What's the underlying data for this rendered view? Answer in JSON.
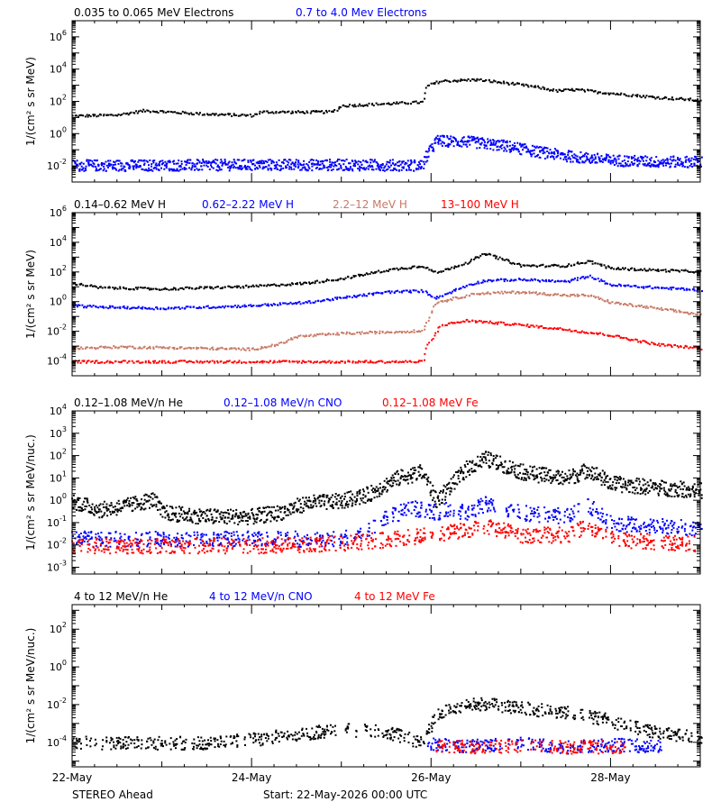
{
  "chart_data": [
    {
      "type": "scatter",
      "ylabel": "1/(cm² s sr MeV)",
      "yscale": "log",
      "ylim": [
        0.001,
        10000000
      ],
      "ytick_exponents": [
        -2,
        0,
        2,
        4,
        6
      ],
      "series": [
        {
          "name": "0.035 to 0.065 MeV Electrons",
          "color": "#000000",
          "x": [
            0,
            0.3,
            0.5,
            0.8,
            1.5,
            2.0,
            2.1,
            2.5,
            2.9,
            3.0,
            3.5,
            3.9,
            3.95,
            4.1,
            4.5,
            4.9,
            5.2,
            5.4,
            5.6,
            5.9,
            6.5,
            7.0
          ],
          "y": [
            14,
            15,
            16,
            30,
            18,
            15,
            25,
            24,
            25,
            60,
            80,
            100,
            1000,
            2000,
            2500,
            1400,
            800,
            500,
            600,
            400,
            200,
            130
          ]
        },
        {
          "name": "0.7 to 4.0 Mev Electrons",
          "color": "#0000ff",
          "x": [
            0,
            1,
            2,
            3,
            3.9,
            3.95,
            4.05,
            4.4,
            4.8,
            5.2,
            5.6,
            6.0,
            6.5,
            7.0
          ],
          "y": [
            0.012,
            0.012,
            0.013,
            0.013,
            0.012,
            0.05,
            0.4,
            0.35,
            0.2,
            0.08,
            0.04,
            0.025,
            0.02,
            0.02
          ]
        }
      ]
    },
    {
      "type": "scatter",
      "ylabel": "1/(cm² s sr MeV)",
      "yscale": "log",
      "ylim": [
        1e-05,
        1000000
      ],
      "ytick_exponents": [
        -4,
        -2,
        0,
        2,
        4,
        6
      ],
      "series": [
        {
          "name": "0.14–0.62 MeV H",
          "color": "#000000",
          "x": [
            0,
            0.3,
            1,
            2,
            2.6,
            3,
            3.5,
            3.9,
            4.05,
            4.4,
            4.6,
            5.0,
            5.5,
            5.75,
            6.0,
            6.5,
            7.0
          ],
          "y": [
            20,
            10,
            8,
            12,
            20,
            40,
            150,
            300,
            100,
            500,
            2000,
            300,
            300,
            600,
            200,
            150,
            120
          ]
        },
        {
          "name": "0.62–2.22 MeV H",
          "color": "#0000ff",
          "x": [
            0,
            0.3,
            1,
            2,
            2.6,
            3,
            3.5,
            3.9,
            4.05,
            4.4,
            4.6,
            5.0,
            5.5,
            5.75,
            6.0,
            6.5,
            7.0
          ],
          "y": [
            0.6,
            0.5,
            0.4,
            0.6,
            1,
            2,
            5,
            6,
            2,
            15,
            30,
            35,
            25,
            60,
            15,
            10,
            7
          ]
        },
        {
          "name": "2.2–12 MeV H",
          "color": "#c87a66",
          "x": [
            0,
            0.5,
            1,
            1.5,
            2,
            2.3,
            2.5,
            3,
            3.5,
            3.9,
            4.05,
            4.5,
            5.0,
            5.5,
            5.75,
            6.0,
            6.5,
            7.0
          ],
          "y": [
            0.0008,
            0.001,
            0.0009,
            0.0008,
            0.0007,
            0.0015,
            0.005,
            0.008,
            0.01,
            0.012,
            1,
            4,
            5,
            3,
            3,
            1,
            0.4,
            0.15
          ]
        },
        {
          "name": "13–100 MeV H",
          "color": "#ff0000",
          "x": [
            0,
            1,
            2,
            3,
            3.9,
            3.95,
            4.1,
            4.4,
            5.0,
            5.5,
            6.0,
            6.5,
            7.0
          ],
          "y": [
            0.0001,
            0.0001,
            0.0001,
            0.0001,
            0.0001,
            0.001,
            0.03,
            0.06,
            0.03,
            0.015,
            0.006,
            0.0015,
            0.0008
          ]
        }
      ]
    },
    {
      "type": "scatter",
      "ylabel": "1/(cm² s sr MeV/nuc.)",
      "yscale": "log",
      "ylim": [
        0.0005,
        10000
      ],
      "ytick_exponents": [
        -3,
        -2,
        -1,
        0,
        1,
        2,
        3,
        4
      ],
      "series": [
        {
          "name": "0.12–1.08 MeV/n He",
          "color": "#000000",
          "x": [
            0,
            0.3,
            0.6,
            0.9,
            1.0,
            1.5,
            2.0,
            2.3,
            2.6,
            3.0,
            3.3,
            3.6,
            3.9,
            4.05,
            4.4,
            4.6,
            5.0,
            5.5,
            5.75,
            6.0,
            6.5,
            7.0
          ],
          "y": [
            1,
            0.4,
            0.6,
            1.2,
            0.3,
            0.2,
            0.2,
            0.3,
            0.8,
            1,
            2,
            10,
            20,
            1,
            30,
            80,
            20,
            10,
            25,
            6,
            4,
            3
          ]
        },
        {
          "name": "0.12–1.08 MeV/n CNO",
          "color": "#0000ff",
          "x": [
            0,
            0.5,
            1,
            2,
            3,
            3.2,
            3.5,
            3.8,
            4.0,
            4.2,
            4.4,
            4.6,
            5.0,
            5.5,
            5.75,
            6.0,
            6.5,
            7.0
          ],
          "y": [
            0.02,
            0.02,
            0.02,
            0.02,
            0.02,
            0.03,
            0.2,
            0.5,
            0.3,
            0.4,
            0.3,
            0.8,
            0.3,
            0.2,
            0.6,
            0.1,
            0.08,
            0.06
          ]
        },
        {
          "name": "0.12–1.08 MeV Fe",
          "color": "#ff0000",
          "x": [
            0,
            1,
            2,
            2.8,
            3.2,
            3.6,
            4.0,
            4.4,
            4.6,
            5.0,
            5.5,
            5.75,
            6.0,
            6.5,
            7.0
          ],
          "y": [
            0.01,
            0.01,
            0.01,
            0.012,
            0.015,
            0.02,
            0.03,
            0.05,
            0.08,
            0.03,
            0.03,
            0.08,
            0.02,
            0.015,
            0.012
          ]
        }
      ]
    },
    {
      "type": "scatter",
      "ylabel": "1/(cm² s sr MeV/nuc.)",
      "yscale": "log",
      "ylim": [
        5e-06,
        2000
      ],
      "ytick_exponents": [
        -4,
        -2,
        0,
        2
      ],
      "series": [
        {
          "name": "4 to 12 MeV/n He",
          "color": "#000000",
          "x": [
            0,
            0.5,
            1,
            1.5,
            2,
            2.5,
            3,
            3.5,
            3.9,
            4.05,
            4.3,
            4.6,
            5.0,
            5.5,
            5.9,
            6.2,
            6.6,
            7.0
          ],
          "y": [
            0.0001,
            0.0001,
            0.0001,
            0.0001,
            0.00015,
            0.0003,
            0.0005,
            0.0004,
            0.0001,
            0.003,
            0.009,
            0.012,
            0.007,
            0.004,
            0.002,
            0.0008,
            0.0003,
            0.0002
          ]
        },
        {
          "name": "4 to 12 MeV/n CNO",
          "color": "#0000ff",
          "x": [
            4.0,
            4.5,
            5.0,
            5.5,
            6.0,
            6.5
          ],
          "y": [
            8e-05,
            7e-05,
            9e-05,
            6e-05,
            8e-05,
            7e-05
          ]
        },
        {
          "name": "4 to 12 MeV Fe",
          "color": "#ff0000",
          "x": [
            4.1,
            4.6,
            5.1,
            5.6,
            6.1
          ],
          "y": [
            7e-05,
            6e-05,
            7e-05,
            6e-05,
            6e-05
          ]
        }
      ]
    }
  ],
  "xaxis": {
    "unit": "days since start",
    "xlim": [
      0,
      7
    ],
    "major_ticks": [
      0,
      2,
      4,
      6
    ],
    "tick_labels": [
      "22-May",
      "24-May",
      "26-May",
      "28-May"
    ]
  },
  "footer": {
    "spacecraft": "STEREO Ahead",
    "start": "Start: 22-May-2026 00:00 UTC"
  },
  "colors": {
    "axes": "#000000",
    "background": "#ffffff"
  }
}
